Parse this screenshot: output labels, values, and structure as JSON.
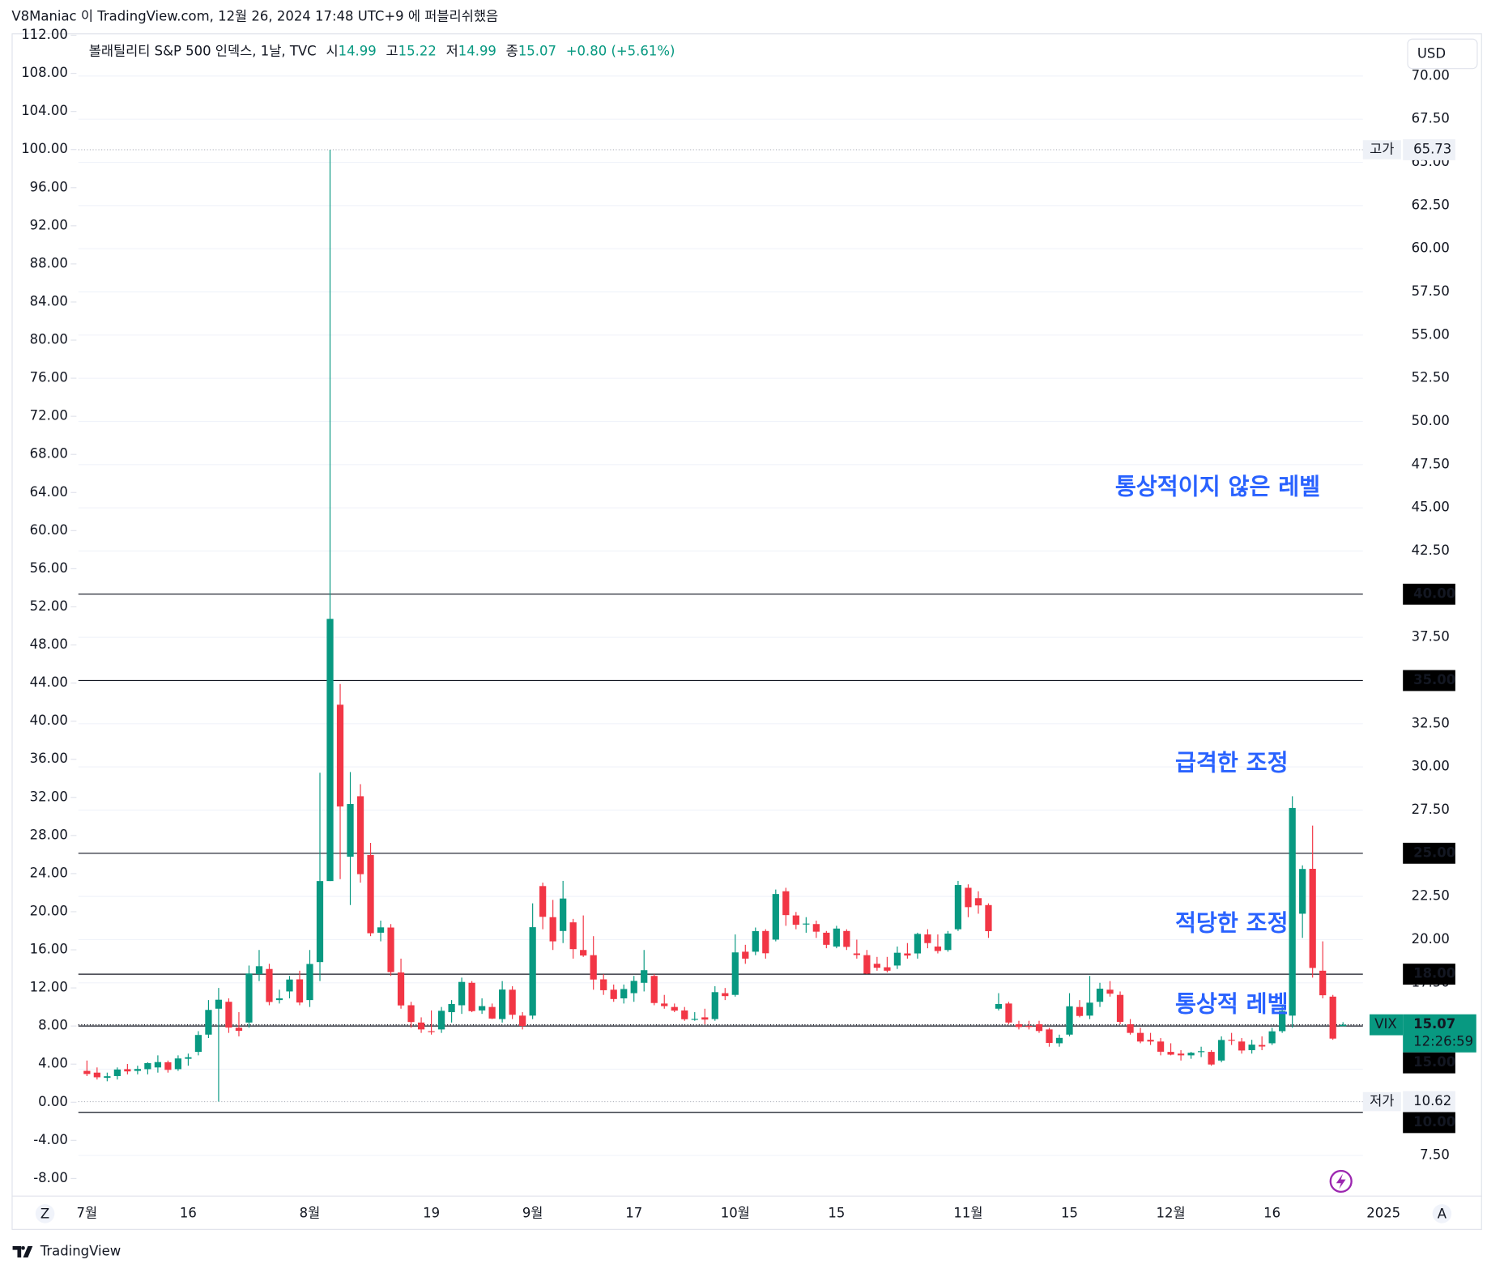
{
  "header": {
    "text": "V8Maniac 이 TradingView.com, 12월 26, 2024 17:48 UTC+9 에 퍼블리쉬했음"
  },
  "chart_data": {
    "type": "candlestick",
    "symbol": "볼래틸리티 S&P 500 인덱스, 1날, TVC",
    "legend": {
      "open_label": "시",
      "open": 14.99,
      "high_label": "고",
      "high": 15.22,
      "low_label": "저",
      "low": 14.99,
      "close_label": "종",
      "close": 15.07,
      "change": "+0.80 (+5.61%)"
    },
    "currency": "USD",
    "up_color": "#089981",
    "down_color": "#f23645",
    "categories": [
      "7월",
      null,
      null,
      null,
      null,
      null,
      null,
      null,
      null,
      null,
      "16",
      null,
      null,
      null,
      null,
      null,
      null,
      null,
      null,
      null,
      null,
      null,
      "8월",
      null,
      null,
      null,
      null,
      null,
      null,
      null,
      null,
      null,
      null,
      null,
      "19",
      null,
      null,
      null,
      null,
      null,
      null,
      null,
      null,
      null,
      "9월",
      null,
      null,
      null,
      null,
      null,
      null,
      null,
      null,
      null,
      "17",
      null,
      null,
      null,
      null,
      null,
      null,
      null,
      null,
      null,
      "10월",
      null,
      null,
      null,
      null,
      null,
      null,
      null,
      null,
      null,
      "15",
      null,
      null,
      null,
      null,
      null,
      null,
      null,
      null,
      null,
      null,
      null,
      null,
      "11월",
      null,
      null,
      null,
      null,
      null,
      null,
      null,
      null,
      null,
      "15",
      null,
      null,
      null,
      null,
      null,
      null,
      null,
      null,
      null,
      "12월",
      null,
      null,
      null,
      null,
      null,
      null,
      null,
      null,
      null,
      "16",
      null,
      null,
      null,
      null,
      null,
      null,
      null,
      null,
      null,
      null,
      "2025"
    ],
    "open": [
      12.4,
      12.3,
      12.0,
      12.1,
      12.5,
      12.4,
      12.5,
      12.6,
      12.9,
      12.5,
      13.1,
      13.5,
      14.5,
      16.0,
      16.4,
      14.9,
      15.2,
      18.0,
      18.3,
      16.5,
      17.0,
      17.7,
      16.5,
      18.7,
      23.39,
      33.6,
      24.8,
      28.3,
      24.9,
      20.4,
      20.7,
      18.1,
      16.2,
      15.2,
      14.7,
      14.8,
      15.8,
      16.2,
      17.5,
      15.9,
      16.1,
      15.4,
      17.1,
      15.6,
      15.6,
      23.1,
      21.3,
      20.5,
      21.0,
      19.4,
      19.1,
      17.7,
      17.1,
      16.6,
      16.9,
      17.5,
      17.9,
      16.3,
      16.1,
      15.9,
      15.4,
      15.5,
      15.4,
      16.9,
      16.8,
      19.3,
      19.3,
      20.5,
      20.0,
      22.8,
      21.4,
      20.9,
      20.9,
      20.4,
      19.6,
      20.5,
      19.2,
      19.1,
      18.6,
      18.4,
      18.5,
      19.2,
      19.2,
      20.3,
      19.6,
      19.4,
      20.6,
      23.0,
      22.4,
      22.0,
      16.0,
      16.3,
      15.1,
      15.0,
      15.1,
      14.8,
      14.0,
      14.5,
      16.1,
      15.6,
      16.4,
      17.1,
      16.8,
      15.1,
      14.6,
      14.2,
      14.1,
      13.5,
      13.4,
      13.3,
      13.5,
      13.5,
      13.0,
      14.2,
      14.1,
      13.6,
      13.9,
      14.0,
      14.7,
      15.6,
      21.5,
      24.1,
      18.2,
      16.7,
      14.99,
      null,
      null,
      null,
      null
    ],
    "high": [
      13.0,
      12.6,
      12.3,
      12.6,
      12.8,
      12.7,
      12.9,
      13.3,
      13.0,
      13.3,
      13.4,
      14.7,
      16.5,
      17.2,
      16.6,
      15.8,
      18.5,
      19.4,
      18.6,
      17.1,
      17.9,
      18.2,
      19.4,
      29.66,
      65.73,
      34.8,
      29.7,
      29.0,
      25.6,
      21.1,
      20.9,
      18.9,
      16.4,
      15.5,
      15.9,
      16.1,
      16.5,
      17.8,
      17.6,
      16.6,
      16.3,
      17.6,
      17.3,
      15.8,
      22.1,
      23.3,
      22.3,
      23.4,
      21.2,
      21.4,
      20.2,
      18.0,
      17.4,
      17.4,
      17.9,
      19.4,
      18.0,
      16.8,
      16.3,
      16.1,
      15.8,
      16.0,
      17.3,
      17.2,
      20.3,
      19.7,
      20.7,
      20.6,
      22.9,
      23.0,
      21.6,
      21.3,
      21.1,
      20.5,
      20.8,
      20.6,
      20.0,
      19.4,
      19.0,
      19.0,
      19.6,
      19.8,
      20.4,
      20.6,
      20.3,
      20.5,
      23.4,
      23.2,
      22.8,
      22.1,
      16.9,
      16.4,
      15.3,
      15.3,
      15.3,
      14.9,
      14.5,
      16.9,
      16.5,
      17.9,
      17.5,
      17.6,
      17.0,
      15.4,
      14.9,
      14.6,
      14.3,
      14.0,
      13.6,
      13.5,
      13.8,
      13.6,
      14.4,
      14.6,
      14.3,
      14.2,
      14.4,
      14.9,
      16.2,
      28.3,
      24.3,
      26.6,
      19.9,
      16.8,
      15.22,
      null,
      null,
      null,
      null
    ],
    "low": [
      12.1,
      11.9,
      11.8,
      11.9,
      12.2,
      12.2,
      12.2,
      12.3,
      12.3,
      12.4,
      12.7,
      13.3,
      14.3,
      10.62,
      14.6,
      14.4,
      14.9,
      17.6,
      16.2,
      16.3,
      16.6,
      16.2,
      16.1,
      17.6,
      23.39,
      23.5,
      22.0,
      23.3,
      20.2,
      19.9,
      17.9,
      16.0,
      14.9,
      14.6,
      14.5,
      14.6,
      15.2,
      15.7,
      15.8,
      15.7,
      15.4,
      15.2,
      15.4,
      14.8,
      15.4,
      20.6,
      19.4,
      19.8,
      18.9,
      19.0,
      17.1,
      16.8,
      16.4,
      16.3,
      16.4,
      17.0,
      16.2,
      16.0,
      15.8,
      15.3,
      15.3,
      15.1,
      15.3,
      16.5,
      16.7,
      18.6,
      19.1,
      18.9,
      19.9,
      20.8,
      20.6,
      20.4,
      20.1,
      19.5,
      19.5,
      19.4,
      18.9,
      18.0,
      18.2,
      18.1,
      18.3,
      18.9,
      18.9,
      19.5,
      19.2,
      19.3,
      20.5,
      21.3,
      21.5,
      20.1,
      15.9,
      15.1,
      14.8,
      14.8,
      14.6,
      13.8,
      13.8,
      14.4,
      15.5,
      15.4,
      16.1,
      16.7,
      15.1,
      14.5,
      14.0,
      13.9,
      13.3,
      13.3,
      13.0,
      13.1,
      13.2,
      12.7,
      12.9,
      13.9,
      13.4,
      13.4,
      13.6,
      13.9,
      14.6,
      14.9,
      20.1,
      17.8,
      16.6,
      14.2,
      14.99,
      null,
      null,
      null,
      null
    ],
    "close": [
      12.22,
      12.03,
      12.09,
      12.48,
      12.37,
      12.51,
      12.85,
      12.91,
      12.46,
      13.12,
      13.19,
      14.48,
      15.93,
      16.52,
      14.91,
      14.72,
      18.04,
      18.46,
      16.39,
      16.6,
      17.69,
      16.36,
      18.59,
      23.39,
      38.57,
      27.71,
      27.85,
      23.79,
      20.37,
      20.71,
      18.12,
      16.19,
      15.23,
      14.8,
      14.65,
      15.88,
      16.27,
      17.55,
      15.86,
      16.15,
      15.43,
      17.11,
      15.65,
      15.0,
      20.72,
      21.32,
      19.9,
      22.38,
      19.45,
      19.08,
      17.69,
      17.07,
      16.56,
      17.14,
      17.61,
      18.23,
      16.33,
      16.15,
      15.89,
      15.39,
      15.41,
      15.37,
      16.96,
      16.73,
      19.26,
      18.9,
      20.49,
      19.21,
      22.64,
      21.42,
      20.86,
      20.93,
      20.46,
      19.7,
      20.64,
      19.58,
      19.11,
      18.03,
      18.37,
      18.2,
      19.24,
      19.08,
      20.33,
      19.8,
      19.34,
      20.35,
      23.16,
      21.88,
      21.98,
      20.49,
      16.27,
      15.2,
      14.94,
      14.97,
      14.71,
      14.02,
      14.31,
      16.14,
      15.58,
      16.35,
      17.16,
      16.87,
      15.24,
      14.6,
      14.1,
      14.1,
      13.51,
      13.34,
      13.3,
      13.45,
      13.54,
      12.77,
      14.19,
      14.18,
      13.58,
      13.92,
      13.81,
      14.69,
      15.87,
      27.62,
      24.09,
      18.36,
      16.78,
      14.27,
      15.07,
      null,
      null,
      null,
      null
    ],
    "ylim": [
      5.18,
      72.47
    ],
    "yticks": [
      {
        "value": 7.5,
        "label": "7.50"
      },
      {
        "value": 10,
        "label": "10.00"
      },
      {
        "value": 12.5,
        "label": "12.50"
      },
      {
        "value": 15,
        "label": "15.00"
      },
      {
        "value": 17.5,
        "label": "17.50"
      },
      {
        "value": 20,
        "label": "20.00"
      },
      {
        "value": 22.5,
        "label": "22.50"
      },
      {
        "value": 25,
        "label": "25.00"
      },
      {
        "value": 27.5,
        "label": "27.50"
      },
      {
        "value": 30,
        "label": "30.00"
      },
      {
        "value": 32.5,
        "label": "32.50"
      },
      {
        "value": 35,
        "label": "35.00"
      },
      {
        "value": 37.5,
        "label": "37.50"
      },
      {
        "value": 40,
        "label": "40.00"
      },
      {
        "value": 42.5,
        "label": "42.50"
      },
      {
        "value": 45,
        "label": "45.00"
      },
      {
        "value": 47.5,
        "label": "47.50"
      },
      {
        "value": 50,
        "label": "50.00"
      },
      {
        "value": 52.5,
        "label": "52.50"
      },
      {
        "value": 55,
        "label": "55.00"
      },
      {
        "value": 57.5,
        "label": "57.50"
      },
      {
        "value": 60,
        "label": "60.00"
      },
      {
        "value": 62.5,
        "label": "62.50"
      },
      {
        "value": 65,
        "label": "65.00"
      },
      {
        "value": 67.5,
        "label": "67.50"
      },
      {
        "value": 70,
        "label": "70.00"
      }
    ],
    "y2lim": [
      -9.8,
      112.2
    ],
    "y2ticks": [
      {
        "value": -8,
        "label": "-8.00"
      },
      {
        "value": -4,
        "label": "-4.00"
      },
      {
        "value": 0,
        "label": "0.00"
      },
      {
        "value": 4,
        "label": "4.00"
      },
      {
        "value": 8,
        "label": "8.00"
      },
      {
        "value": 12,
        "label": "12.00"
      },
      {
        "value": 16,
        "label": "16.00"
      },
      {
        "value": 20,
        "label": "20.00"
      },
      {
        "value": 24,
        "label": "24.00"
      },
      {
        "value": 28,
        "label": "28.00"
      },
      {
        "value": 32,
        "label": "32.00"
      },
      {
        "value": 36,
        "label": "36.00"
      },
      {
        "value": 40,
        "label": "40.00"
      },
      {
        "value": 44,
        "label": "44.00"
      },
      {
        "value": 48,
        "label": "48.00"
      },
      {
        "value": 52,
        "label": "52.00"
      },
      {
        "value": 56,
        "label": "56.00"
      },
      {
        "value": 60,
        "label": "60.00"
      },
      {
        "value": 64,
        "label": "64.00"
      },
      {
        "value": 68,
        "label": "68.00"
      },
      {
        "value": 72,
        "label": "72.00"
      },
      {
        "value": 76,
        "label": "76.00"
      },
      {
        "value": 80,
        "label": "80.00"
      },
      {
        "value": 84,
        "label": "84.00"
      },
      {
        "value": 88,
        "label": "88.00"
      },
      {
        "value": 92,
        "label": "92.00"
      },
      {
        "value": 96,
        "label": "96.00"
      },
      {
        "value": 100,
        "label": "100.00"
      },
      {
        "value": 104,
        "label": "104.00"
      },
      {
        "value": 108,
        "label": "108.00"
      },
      {
        "value": 112,
        "label": "112.00"
      }
    ],
    "levels": [
      {
        "value": 40,
        "label": "40.00"
      },
      {
        "value": 35,
        "label": "35.00"
      },
      {
        "value": 25,
        "label": "25.00"
      },
      {
        "value": 18,
        "label": "18.00"
      },
      {
        "value": 15,
        "label": "15.00"
      },
      {
        "value": 10,
        "label": "10.00"
      }
    ],
    "high_marker": {
      "label": "고가",
      "value": 65.73
    },
    "low_marker": {
      "label": "저가",
      "value": 10.62
    },
    "last_price": {
      "symbol": "VIX",
      "value": 15.07,
      "countdown": "12:26:59"
    },
    "annotations": [
      "통상적이지 않은 레벨",
      "급격한 조정",
      "적당한 조정",
      "통상적 레벨"
    ],
    "scale_buttons": [
      "Z",
      "A"
    ]
  },
  "footer": {
    "brand": "TradingView"
  }
}
